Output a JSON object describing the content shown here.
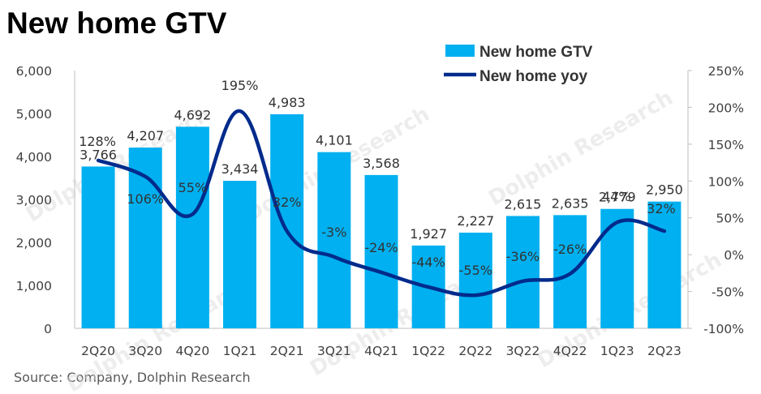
{
  "title": "New home GTV",
  "source": "Source: Company, Dolphin Research",
  "watermark": "Dolphin Research",
  "chart_data": {
    "type": "bar",
    "categories": [
      "2Q20",
      "3Q20",
      "4Q20",
      "1Q21",
      "2Q21",
      "3Q21",
      "4Q21",
      "1Q22",
      "2Q22",
      "3Q22",
      "4Q22",
      "1Q23",
      "2Q23"
    ],
    "series": [
      {
        "name": "New home GTV",
        "type": "bar",
        "axis": "left",
        "color": "#00B0F0",
        "values": [
          3766,
          4207,
          4692,
          3434,
          4983,
          4101,
          3568,
          1927,
          2227,
          2615,
          2635,
          2779,
          2950
        ],
        "labels": [
          "3,766",
          "4,207",
          "4,692",
          "3,434",
          "4,983",
          "4,101",
          "3,568",
          "1,927",
          "2,227",
          "2,615",
          "2,635",
          "2,779",
          "2,950"
        ]
      },
      {
        "name": "New home yoy",
        "type": "line",
        "axis": "right",
        "color": "#002B8C",
        "values": [
          128,
          106,
          55,
          195,
          32,
          -3,
          -24,
          -44,
          -55,
          -36,
          -26,
          44,
          32
        ],
        "labels": [
          "128%",
          "106%",
          "55%",
          "195%",
          "32%",
          "-3%",
          "-24%",
          "-44%",
          "-55%",
          "-36%",
          "-26%",
          "44%",
          "32%"
        ]
      }
    ],
    "y_left": {
      "min": 0,
      "max": 6000,
      "ticks": [
        "0",
        "1,000",
        "2,000",
        "3,000",
        "4,000",
        "5,000",
        "6,000"
      ]
    },
    "y_right": {
      "min": -100,
      "max": 250,
      "ticks": [
        "-100%",
        "-50%",
        "0%",
        "50%",
        "100%",
        "150%",
        "200%",
        "250%"
      ]
    },
    "legend_position": "top-right",
    "grid": false
  }
}
